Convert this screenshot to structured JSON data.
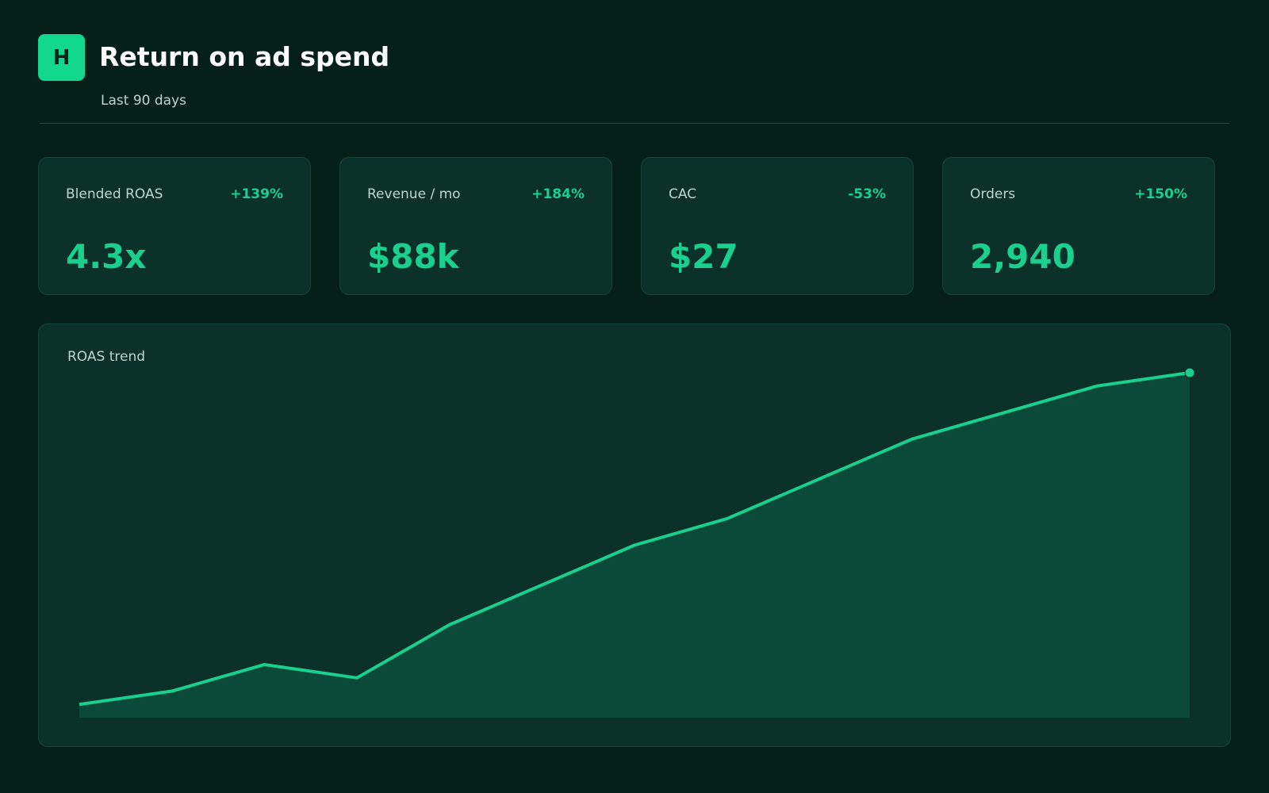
{
  "header": {
    "logo": "H",
    "title": "Return on ad spend",
    "subtitle": "Last 90 days"
  },
  "kpis": [
    {
      "label": "Blended ROAS",
      "delta": "+139%",
      "value": "4.3x"
    },
    {
      "label": "Revenue / mo",
      "delta": "+184%",
      "value": "$88k"
    },
    {
      "label": "CAC",
      "delta": "-53%",
      "value": "$27"
    },
    {
      "label": "Orders",
      "delta": "+150%",
      "value": "2,940"
    }
  ],
  "chart_data": {
    "type": "line",
    "title": "ROAS trend",
    "categories": [
      null,
      null,
      null,
      null,
      null,
      null,
      null,
      null,
      null,
      null,
      null,
      null,
      null
    ],
    "values": [
      1.8,
      1.9,
      2.1,
      2.0,
      2.4,
      2.7,
      3.0,
      3.2,
      3.5,
      3.8,
      4.0,
      4.2,
      4.3
    ],
    "color": "#19d08f",
    "area_color": "#0b4a38",
    "end_marker": true,
    "ylim": [
      1.7,
      4.3
    ]
  }
}
